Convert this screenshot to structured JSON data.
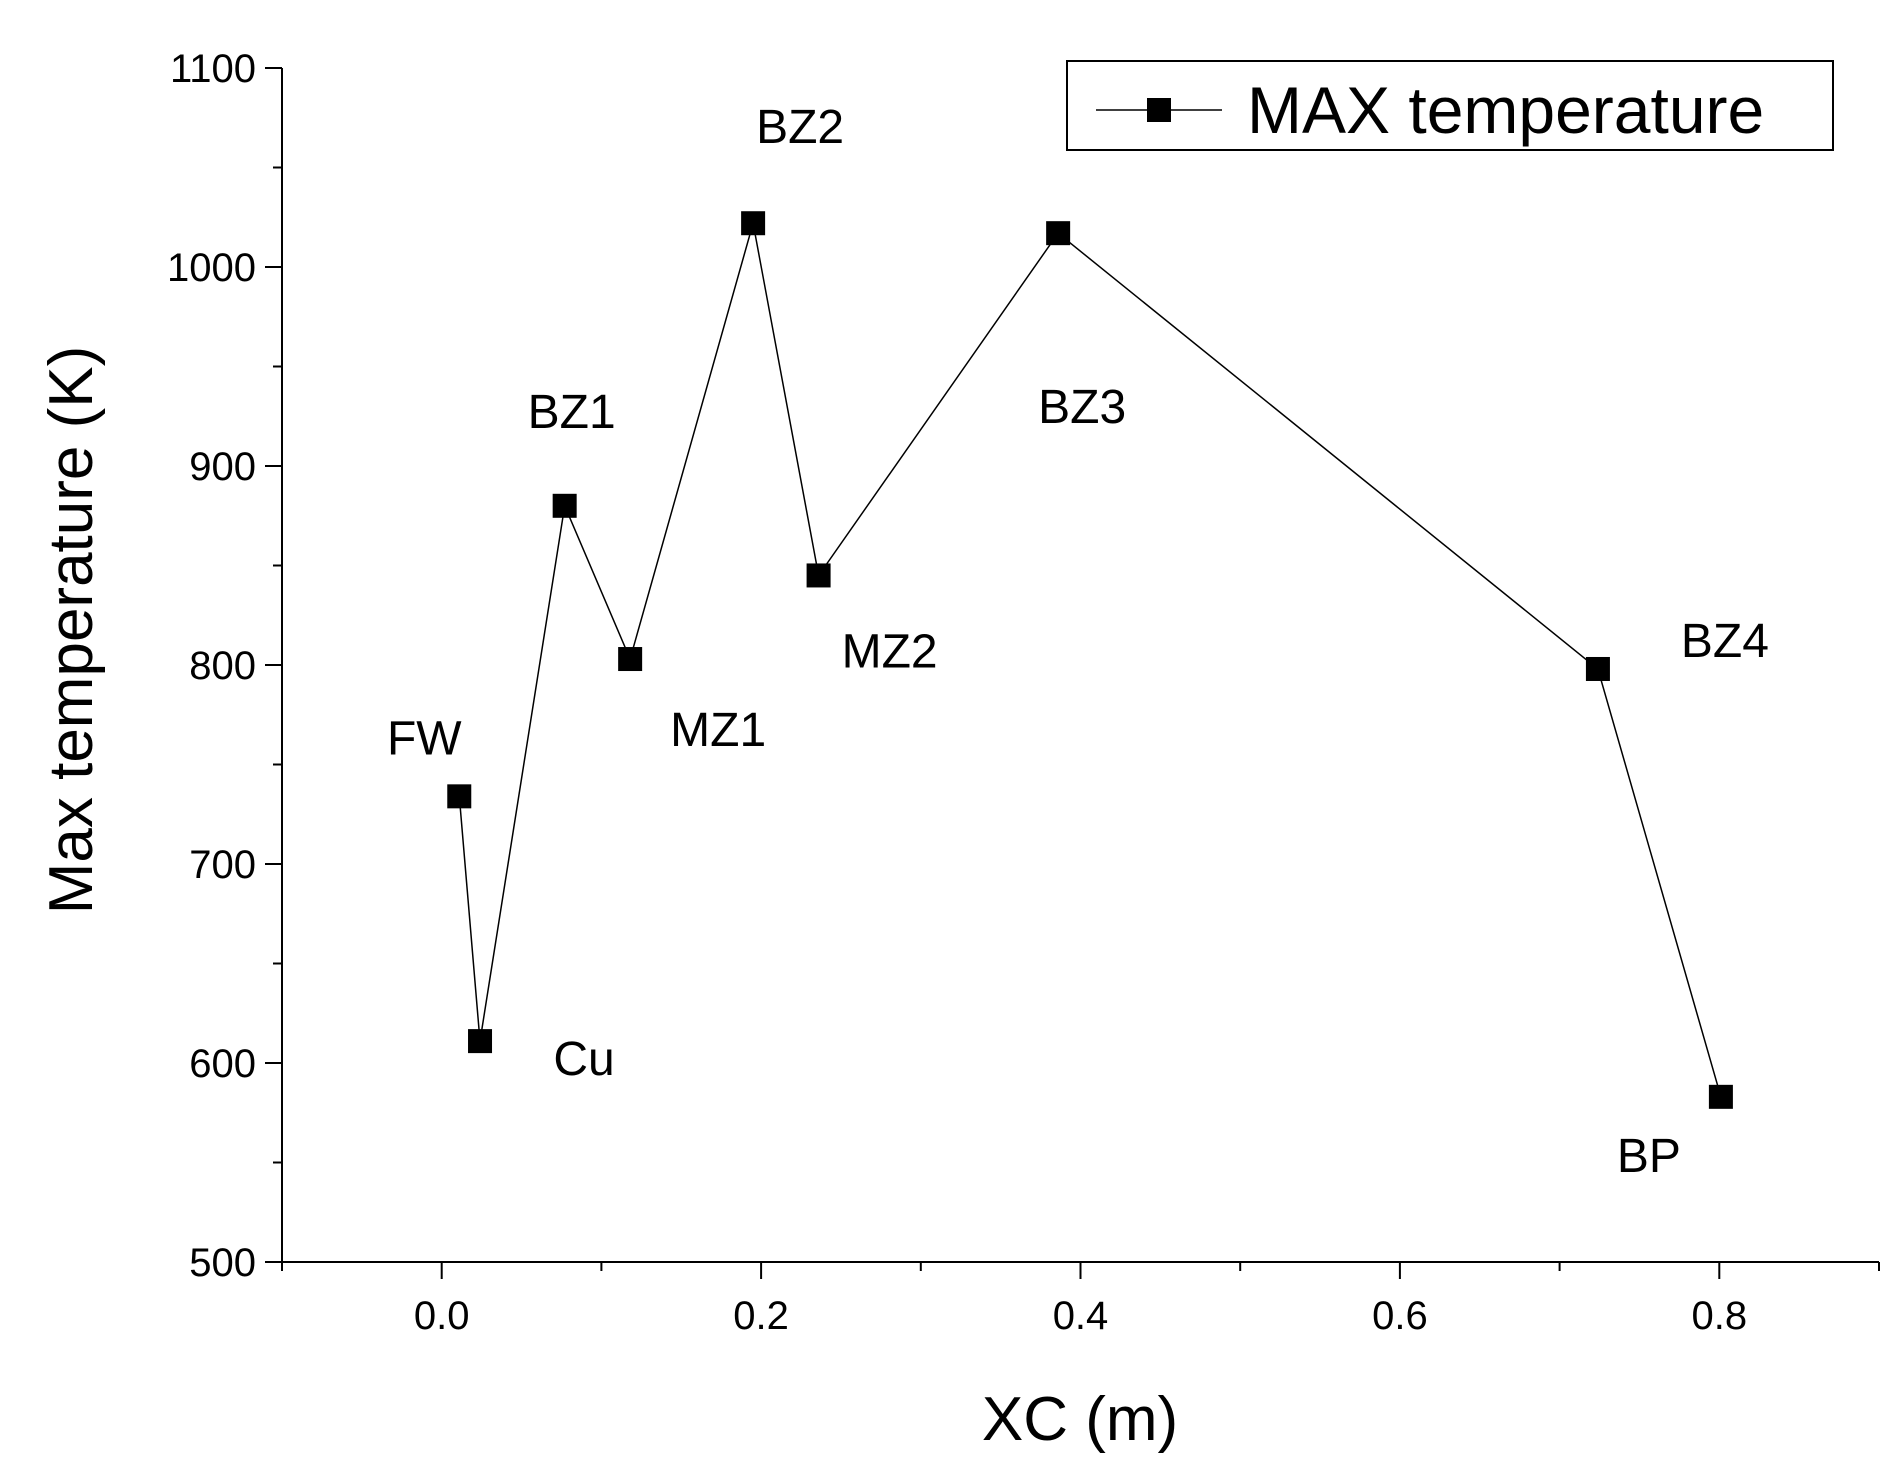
{
  "chart_data": {
    "type": "line",
    "title": "",
    "xlabel": "XC (m)",
    "ylabel": "Max temperature (K)",
    "xlim": [
      -0.1,
      0.9
    ],
    "ylim": [
      500,
      1100
    ],
    "x_ticks": [
      0.0,
      0.2,
      0.4,
      0.6,
      0.8
    ],
    "x_tick_labels": [
      "0.0",
      "0.2",
      "0.4",
      "0.6",
      "0.8"
    ],
    "y_ticks": [
      500,
      600,
      700,
      800,
      900,
      1000,
      1100
    ],
    "y_tick_labels": [
      "500",
      "600",
      "700",
      "800",
      "900",
      "1000",
      "1100"
    ],
    "grid": false,
    "legend_position": "top-right",
    "series": [
      {
        "name": "MAX temperature",
        "color": "#000000",
        "marker": "square",
        "x": [
          0.011,
          0.024,
          0.077,
          0.118,
          0.195,
          0.236,
          0.386,
          0.724,
          0.801
        ],
        "y": [
          734,
          611,
          880,
          803,
          1022,
          845,
          1017,
          798,
          583
        ],
        "point_labels": [
          "FW",
          "Cu",
          "BZ1",
          "MZ1",
          "BZ2",
          "MZ2",
          "BZ3",
          "BZ4",
          "BP"
        ]
      }
    ]
  }
}
